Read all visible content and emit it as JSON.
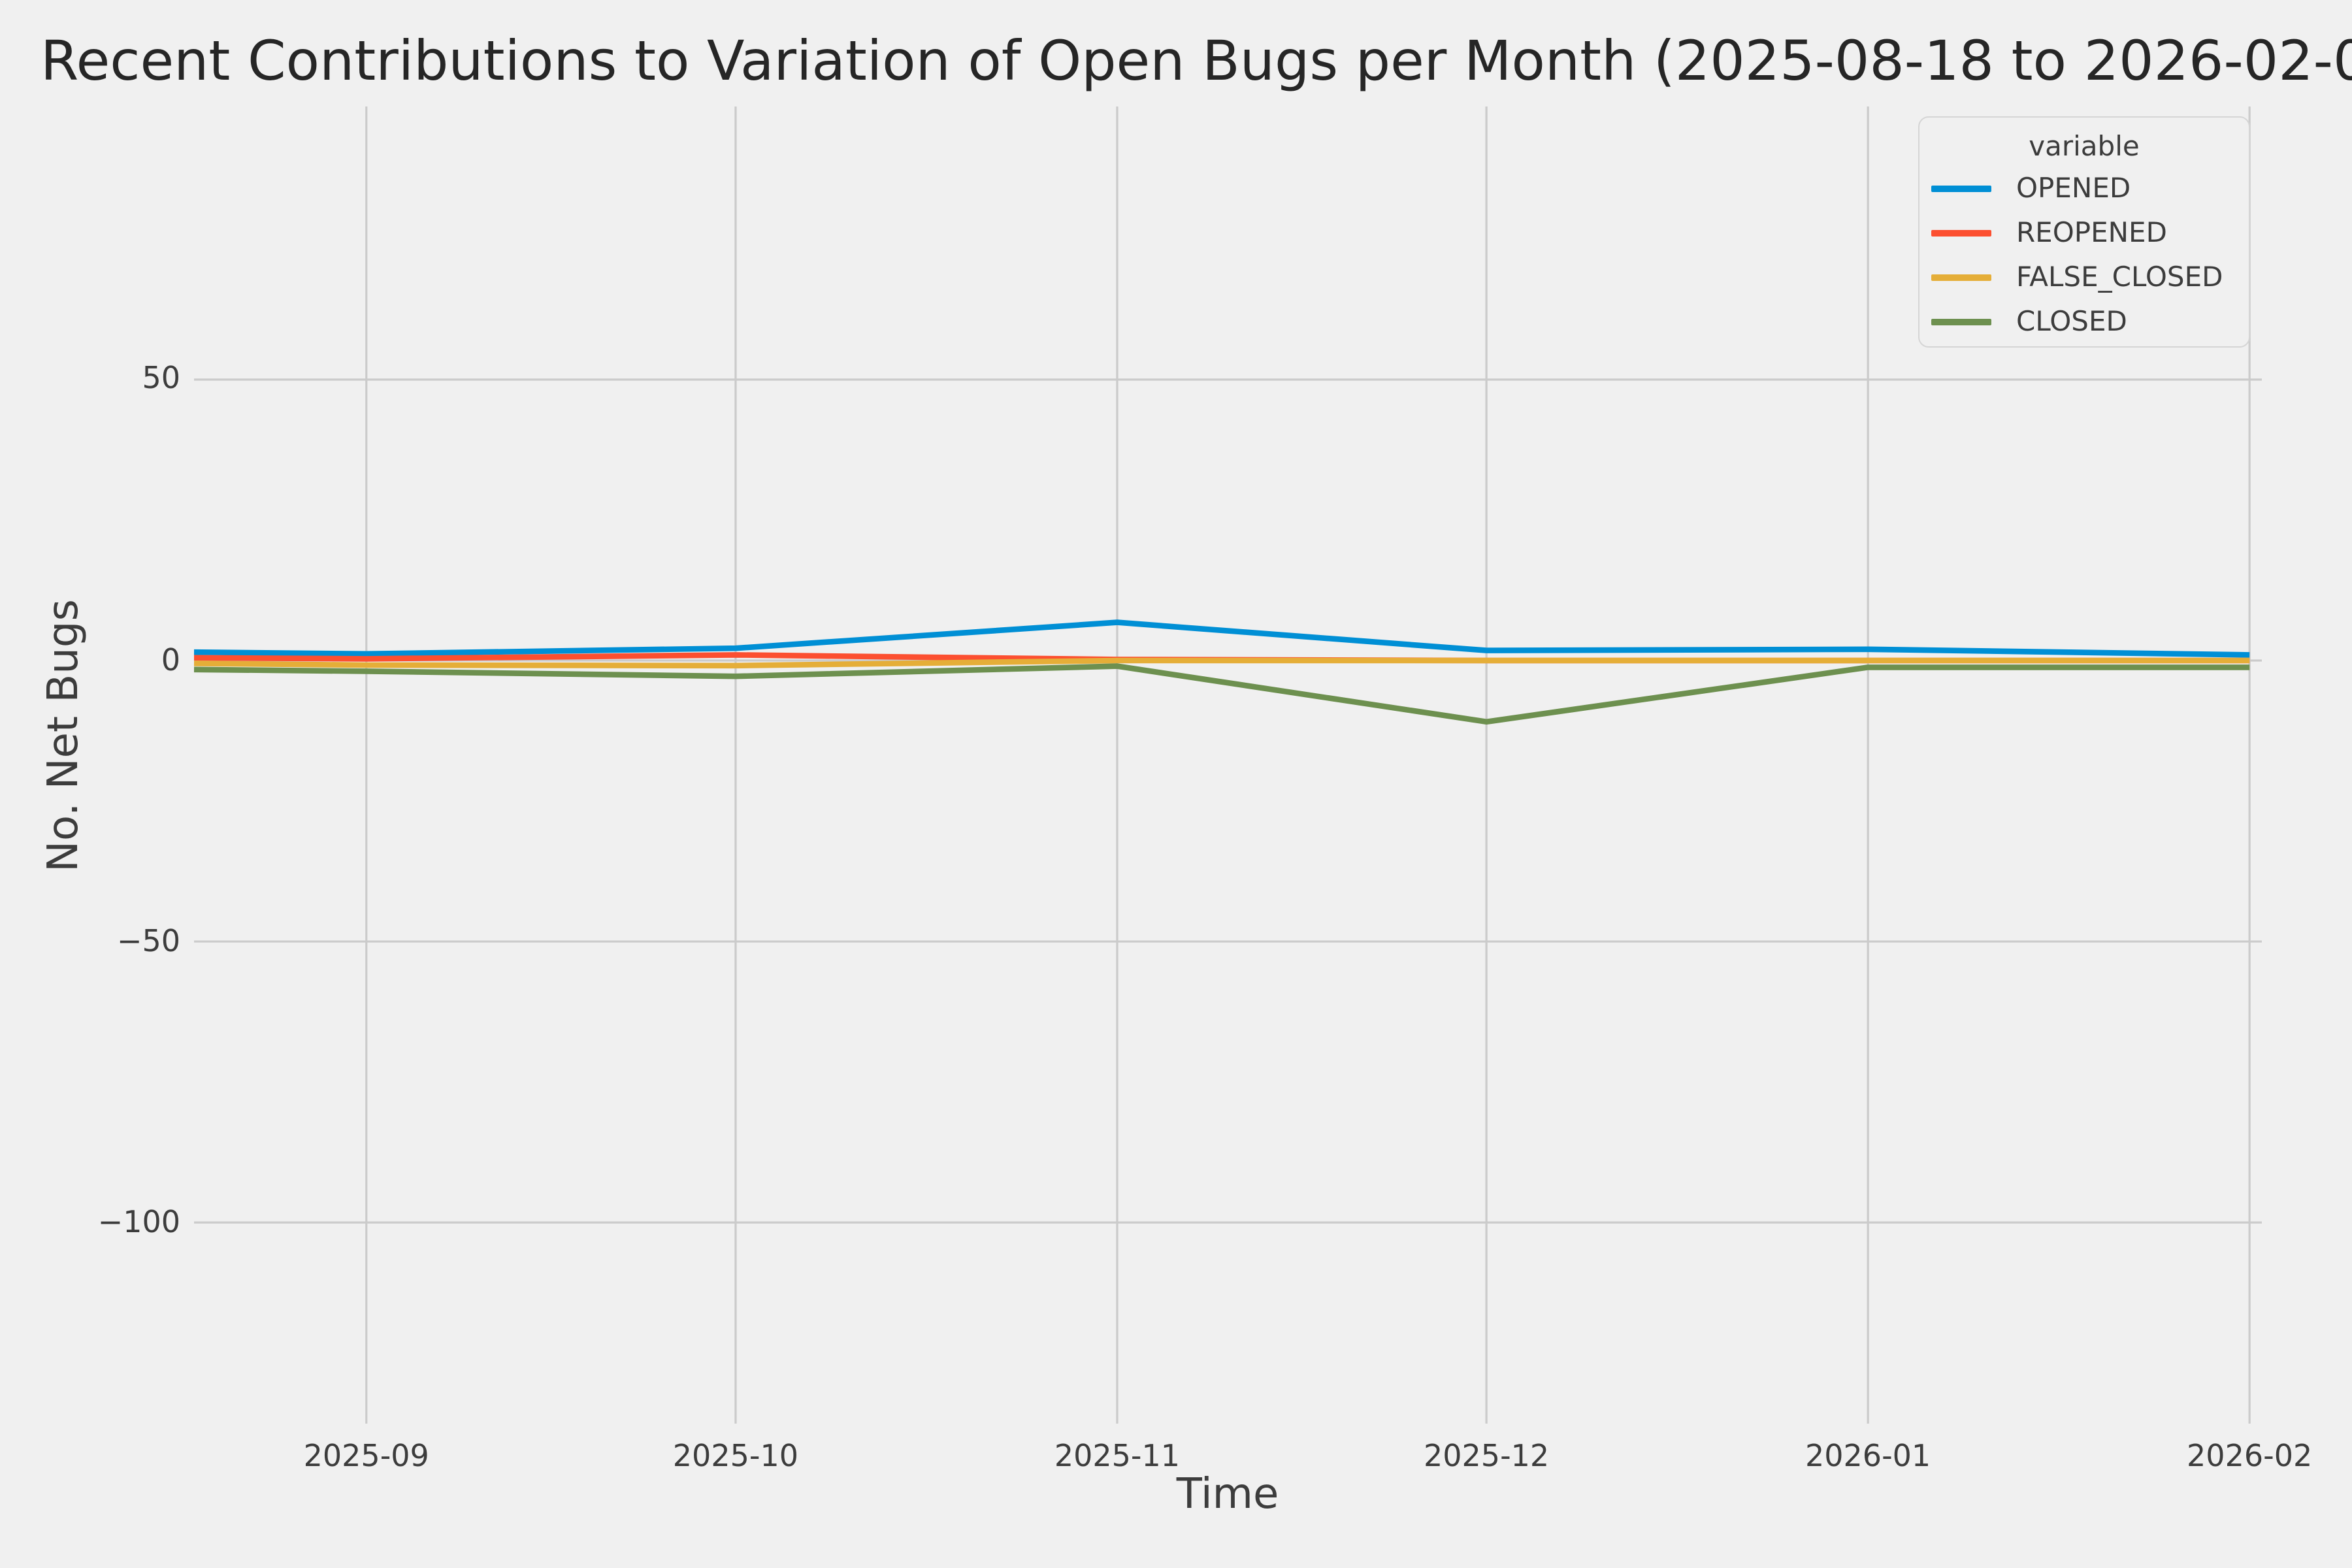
{
  "figure": {
    "title": "Recent Contributions to Variation of Open Bugs per Month (2025-08-18 to 2026-02-0",
    "xlabel": "Time",
    "ylabel": "No. Net Bugs",
    "background_color": "#f0f0f0",
    "grid_color": "#cbcbcb",
    "text_color": "#3c3c3c",
    "title_color": "#262626"
  },
  "legend": {
    "title": "variable",
    "position": "upper right",
    "entries": [
      {
        "label": "OPENED",
        "color": "#008fd5"
      },
      {
        "label": "REOPENED",
        "color": "#fc4f30"
      },
      {
        "label": "FALSE_CLOSED",
        "color": "#e5ae38"
      },
      {
        "label": "CLOSED",
        "color": "#6d904f"
      }
    ]
  },
  "axes": {
    "x_domain": [
      "2025-08-18",
      "2026-02-02"
    ],
    "y_domain": [
      -135.8,
      98.6
    ],
    "x_ticks": [
      {
        "value": "2025-09-01",
        "label": "2025-09"
      },
      {
        "value": "2025-10-01",
        "label": "2025-10"
      },
      {
        "value": "2025-11-01",
        "label": "2025-11"
      },
      {
        "value": "2025-12-01",
        "label": "2025-12"
      },
      {
        "value": "2026-01-01",
        "label": "2026-01"
      },
      {
        "value": "2026-02-01",
        "label": "2026-02"
      }
    ],
    "y_ticks": [
      {
        "value": 50,
        "label": "50"
      },
      {
        "value": 0,
        "label": "0"
      },
      {
        "value": -50,
        "label": "−50"
      },
      {
        "value": -100,
        "label": "−100"
      }
    ]
  },
  "chart_data": {
    "type": "line",
    "title": "Recent Contributions to Variation of Open Bugs per Month (2025-08-18 to 2026-02-0",
    "xlabel": "Time",
    "ylabel": "No. Net Bugs",
    "x": [
      "2025-08-18",
      "2025-09-01",
      "2025-10-01",
      "2025-11-01",
      "2025-12-01",
      "2026-01-01",
      "2026-02-01"
    ],
    "x_note": "first point 2025-08-18 is the clipped left edge of the axis",
    "series": [
      {
        "name": "OPENED",
        "color": "#008fd5",
        "values": [
          1.5,
          1.2,
          2.2,
          6.8,
          1.8,
          2.0,
          1.0
        ]
      },
      {
        "name": "REOPENED",
        "color": "#fc4f30",
        "values": [
          0.5,
          0.3,
          1.0,
          0.2,
          0.0,
          0.0,
          0.0
        ]
      },
      {
        "name": "FALSE_CLOSED",
        "color": "#e5ae38",
        "values": [
          -0.5,
          -0.8,
          -0.9,
          0.0,
          0.0,
          0.0,
          0.0
        ]
      },
      {
        "name": "CLOSED",
        "color": "#6d904f",
        "values": [
          -1.6,
          -1.9,
          -2.8,
          -1.0,
          -10.9,
          -1.2,
          -1.2
        ]
      }
    ],
    "ylim": [
      -135.8,
      98.6
    ],
    "grid": true,
    "legend_title": "variable",
    "legend_position": "upper right",
    "legend_entries": [
      "OPENED",
      "REOPENED",
      "FALSE_CLOSED",
      "CLOSED"
    ]
  }
}
